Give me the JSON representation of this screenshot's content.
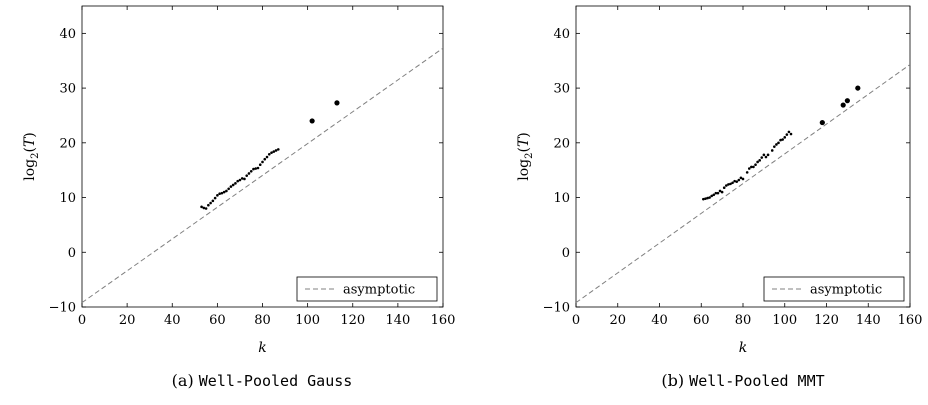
{
  "chart_data": [
    {
      "type": "scatter",
      "tag": "(a)",
      "caption": "Well-Pooled Gauss",
      "xlabel": "k",
      "ylabel": "log2(T)",
      "xlim": [
        0,
        160
      ],
      "ylim": [
        -10,
        45
      ],
      "xticks": [
        0,
        20,
        40,
        60,
        80,
        100,
        120,
        140,
        160
      ],
      "yticks": [
        -10,
        0,
        10,
        20,
        30,
        40
      ],
      "grid": false,
      "legend": {
        "position": "bottom-right",
        "entries": [
          "asymptotic"
        ]
      },
      "series": [
        {
          "name": "asymptotic",
          "style": "dashed",
          "color": "#808080",
          "x": [
            0,
            160
          ],
          "y": [
            -9.2,
            37.3
          ]
        },
        {
          "style": "markers",
          "color": "#000000",
          "x": [
            53,
            54,
            55,
            56,
            57,
            58,
            59,
            60,
            61,
            62,
            63,
            64,
            65,
            66,
            67,
            68,
            69,
            70,
            71,
            72,
            73,
            74,
            75,
            76,
            77,
            78,
            79,
            80,
            81,
            82,
            83,
            84,
            85,
            86,
            87,
            102,
            113
          ],
          "y": [
            8.3,
            8.1,
            8.0,
            8.6,
            9.0,
            9.4,
            9.9,
            10.4,
            10.7,
            10.8,
            11.0,
            11.2,
            11.6,
            12.0,
            12.3,
            12.6,
            13.0,
            13.2,
            13.5,
            13.4,
            14.0,
            14.4,
            14.8,
            15.2,
            15.3,
            15.4,
            16.0,
            16.5,
            17.0,
            17.4,
            17.9,
            18.2,
            18.4,
            18.6,
            18.8,
            24.0,
            27.3
          ],
          "large_marker_from_index": 35
        }
      ]
    },
    {
      "type": "scatter",
      "tag": "(b)",
      "caption": "Well-Pooled MMT",
      "xlabel": "k",
      "ylabel": "log2(T)",
      "xlim": [
        0,
        160
      ],
      "ylim": [
        -10,
        45
      ],
      "xticks": [
        0,
        20,
        40,
        60,
        80,
        100,
        120,
        140,
        160
      ],
      "yticks": [
        -10,
        0,
        10,
        20,
        30,
        40
      ],
      "grid": false,
      "legend": {
        "position": "bottom-right",
        "entries": [
          "asymptotic"
        ]
      },
      "series": [
        {
          "name": "asymptotic",
          "style": "dashed",
          "color": "#808080",
          "x": [
            0,
            160
          ],
          "y": [
            -9.2,
            34.3
          ]
        },
        {
          "style": "markers",
          "color": "#000000",
          "x": [
            61,
            62,
            63,
            64,
            65,
            66,
            67,
            68,
            69,
            70,
            71,
            72,
            73,
            74,
            75,
            76,
            77,
            78,
            79,
            80,
            82,
            83,
            84,
            85,
            86,
            87,
            88,
            89,
            90,
            91,
            92,
            94,
            95,
            96,
            97,
            98,
            99,
            100,
            101,
            102,
            103,
            118,
            128,
            130,
            135
          ],
          "y": [
            9.7,
            9.8,
            9.9,
            10.0,
            10.3,
            10.5,
            10.8,
            10.8,
            11.2,
            11.0,
            11.8,
            12.2,
            12.4,
            12.5,
            12.7,
            13.0,
            12.9,
            13.2,
            13.6,
            13.4,
            14.6,
            15.3,
            15.6,
            15.6,
            16.0,
            16.5,
            16.8,
            17.3,
            17.8,
            17.4,
            17.8,
            18.6,
            19.3,
            19.7,
            20.0,
            20.5,
            20.6,
            21.0,
            21.5,
            22.0,
            21.6,
            23.7,
            26.9,
            27.7,
            30.0
          ],
          "large_marker_from_index": 41
        }
      ]
    }
  ]
}
